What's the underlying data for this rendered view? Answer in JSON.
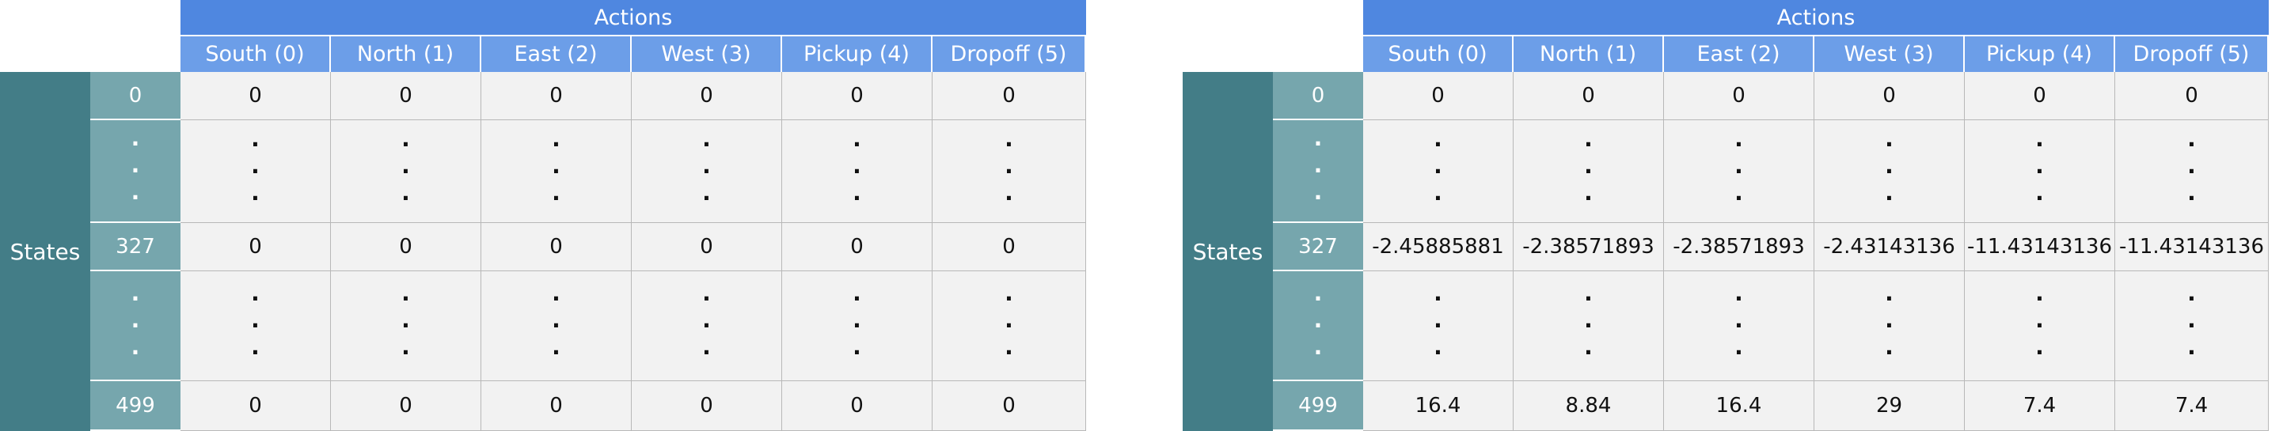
{
  "header": {
    "actions_label": "Actions",
    "actions": [
      "South (0)",
      "North (1)",
      "East (2)",
      "West (3)",
      "Pickup (4)",
      "Dropoff (5)"
    ],
    "states_label": "States"
  },
  "states": [
    "0",
    "327",
    "499"
  ],
  "ellipsis": "·",
  "tables": [
    {
      "rows": [
        [
          "0",
          "0",
          "0",
          "0",
          "0",
          "0"
        ],
        [
          "0",
          "0",
          "0",
          "0",
          "0",
          "0"
        ],
        [
          "0",
          "0",
          "0",
          "0",
          "0",
          "0"
        ]
      ]
    },
    {
      "rows": [
        [
          "0",
          "0",
          "0",
          "0",
          "0",
          "0"
        ],
        [
          "-2.45885881",
          "-2.38571893",
          "-2.38571893",
          "-2.43143136",
          "-11.43143136",
          "-11.43143136"
        ],
        [
          "16.4",
          "8.84",
          "16.4",
          "29",
          "7.4",
          "7.4"
        ]
      ]
    }
  ],
  "colors": {
    "actions_header": "#4f87e0",
    "action_subheader": "#6c9ee8",
    "states_label": "#437d87",
    "state_cell": "#76a6ad",
    "data_cell": "#f2f2f2"
  }
}
